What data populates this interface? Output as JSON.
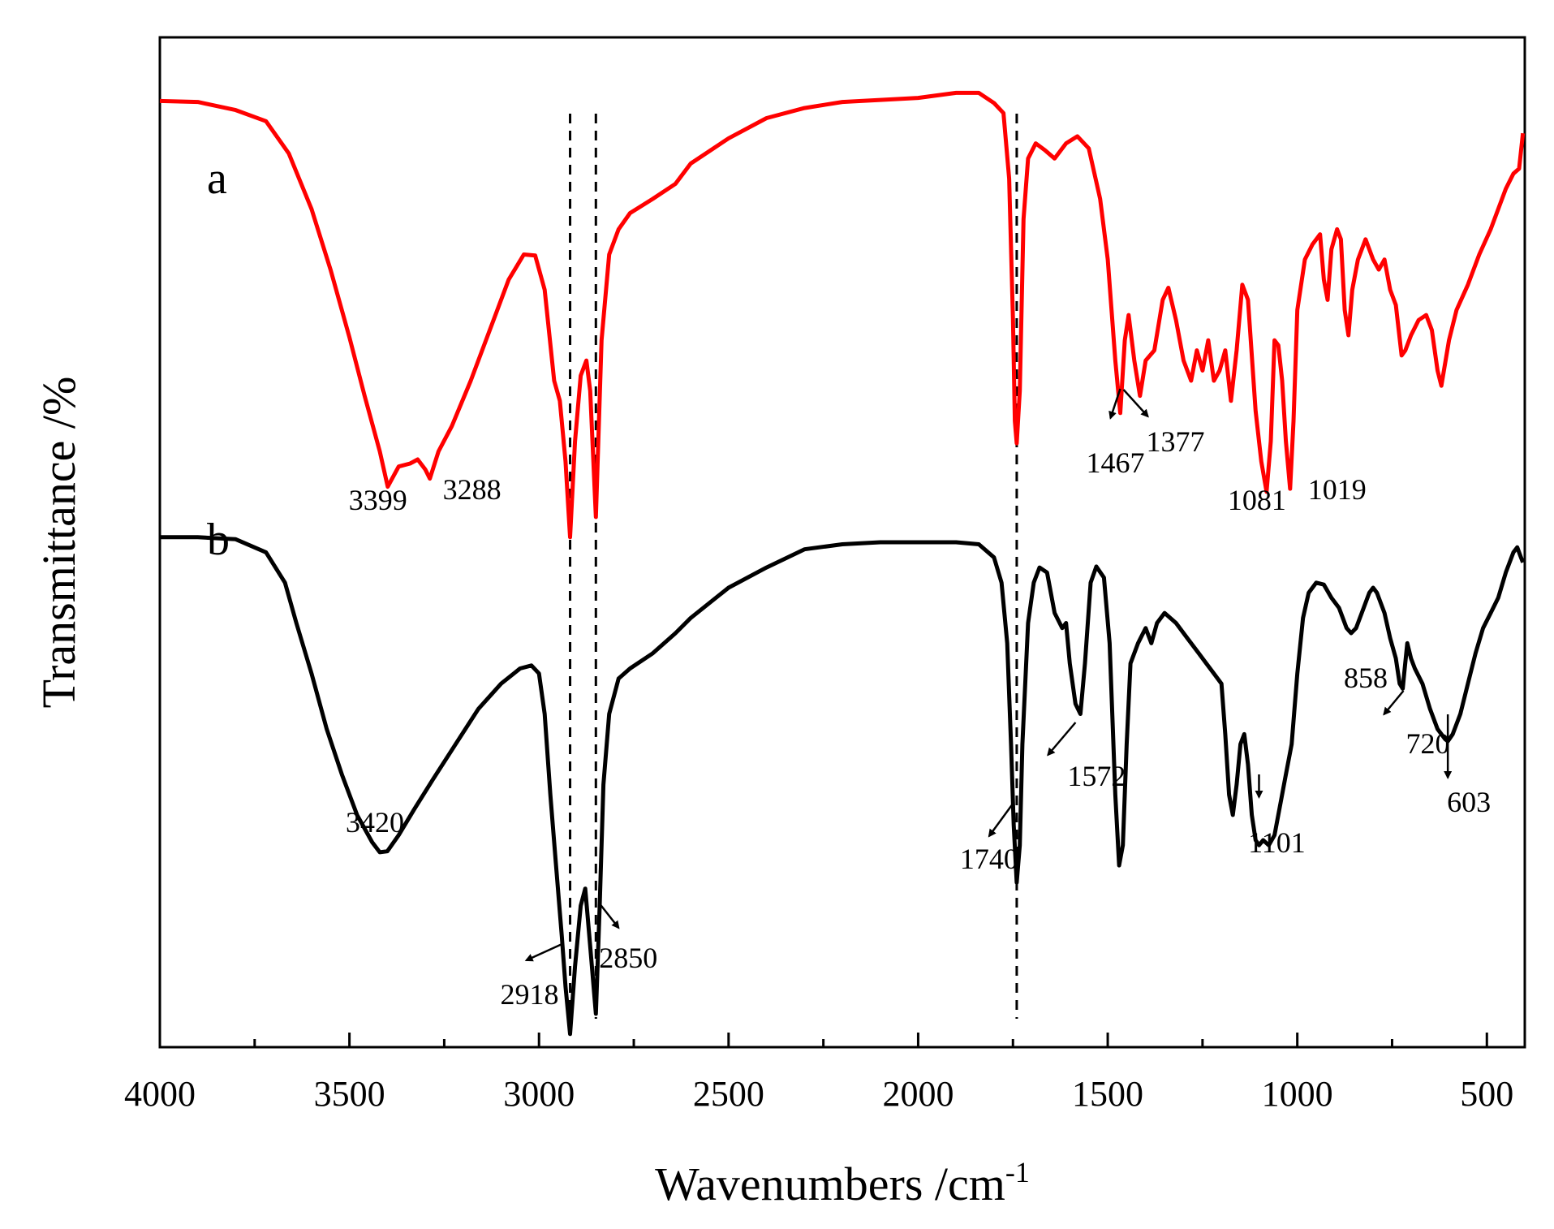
{
  "chart_data": {
    "type": "line",
    "title": "",
    "xlabel": "Wavenumbers /cm",
    "xlabel_sup": "-1",
    "ylabel": "Transmittance /%",
    "xlim": [
      4000,
      400
    ],
    "ylim": [
      0,
      100
    ],
    "x_reversed": true,
    "grid": false,
    "x_ticks": [
      4000,
      3500,
      3000,
      2500,
      2000,
      1500,
      1000,
      500
    ],
    "x_minor_ticks": [
      3750,
      3250,
      2750,
      2250,
      1750,
      1250,
      750
    ],
    "reference_lines": [
      2918,
      2850,
      1740
    ],
    "series": [
      {
        "name": "a",
        "color": "#ff0000",
        "points": [
          [
            4000,
            93.7
          ],
          [
            3900,
            93.6
          ],
          [
            3800,
            92.8
          ],
          [
            3720,
            91.7
          ],
          [
            3660,
            88.5
          ],
          [
            3600,
            83.0
          ],
          [
            3550,
            77.0
          ],
          [
            3500,
            70.3
          ],
          [
            3460,
            64.5
          ],
          [
            3420,
            59.0
          ],
          [
            3399,
            55.5
          ],
          [
            3370,
            57.5
          ],
          [
            3340,
            57.8
          ],
          [
            3320,
            58.2
          ],
          [
            3300,
            57.2
          ],
          [
            3288,
            56.3
          ],
          [
            3265,
            59.0
          ],
          [
            3230,
            61.5
          ],
          [
            3180,
            66.0
          ],
          [
            3130,
            71.0
          ],
          [
            3080,
            76.0
          ],
          [
            3040,
            78.5
          ],
          [
            3010,
            78.4
          ],
          [
            2985,
            75.0
          ],
          [
            2960,
            66.0
          ],
          [
            2945,
            64.0
          ],
          [
            2930,
            58.0
          ],
          [
            2918,
            50.5
          ],
          [
            2905,
            60.0
          ],
          [
            2890,
            66.5
          ],
          [
            2875,
            68.0
          ],
          [
            2865,
            65.0
          ],
          [
            2850,
            52.5
          ],
          [
            2835,
            70.0
          ],
          [
            2815,
            78.5
          ],
          [
            2790,
            81.0
          ],
          [
            2760,
            82.6
          ],
          [
            2700,
            84.0
          ],
          [
            2640,
            85.5
          ],
          [
            2600,
            87.5
          ],
          [
            2500,
            90.0
          ],
          [
            2400,
            92.0
          ],
          [
            2300,
            93.0
          ],
          [
            2200,
            93.6
          ],
          [
            2100,
            93.8
          ],
          [
            2000,
            94.0
          ],
          [
            1900,
            94.5
          ],
          [
            1840,
            94.5
          ],
          [
            1800,
            93.5
          ],
          [
            1775,
            92.5
          ],
          [
            1760,
            86.0
          ],
          [
            1750,
            72.0
          ],
          [
            1745,
            62.0
          ],
          [
            1740,
            59.8
          ],
          [
            1732,
            65.0
          ],
          [
            1722,
            82.0
          ],
          [
            1710,
            88.0
          ],
          [
            1690,
            89.5
          ],
          [
            1665,
            88.8
          ],
          [
            1640,
            88.0
          ],
          [
            1610,
            89.5
          ],
          [
            1580,
            90.2
          ],
          [
            1550,
            89.0
          ],
          [
            1520,
            84.0
          ],
          [
            1500,
            78.0
          ],
          [
            1480,
            68.0
          ],
          [
            1467,
            62.8
          ],
          [
            1455,
            70.0
          ],
          [
            1445,
            72.5
          ],
          [
            1430,
            68.0
          ],
          [
            1415,
            64.5
          ],
          [
            1400,
            68.0
          ],
          [
            1377,
            69.0
          ],
          [
            1355,
            74.0
          ],
          [
            1340,
            75.2
          ],
          [
            1320,
            72.0
          ],
          [
            1300,
            68.0
          ],
          [
            1280,
            66.0
          ],
          [
            1265,
            69.0
          ],
          [
            1250,
            67.0
          ],
          [
            1235,
            70.0
          ],
          [
            1220,
            66.0
          ],
          [
            1205,
            67.0
          ],
          [
            1190,
            69.0
          ],
          [
            1175,
            64.0
          ],
          [
            1160,
            69.0
          ],
          [
            1145,
            75.5
          ],
          [
            1130,
            74.0
          ],
          [
            1110,
            63.0
          ],
          [
            1095,
            58.0
          ],
          [
            1081,
            55.0
          ],
          [
            1070,
            60.0
          ],
          [
            1060,
            70.0
          ],
          [
            1050,
            69.5
          ],
          [
            1040,
            66.0
          ],
          [
            1030,
            60.0
          ],
          [
            1019,
            55.3
          ],
          [
            1010,
            62.0
          ],
          [
            1000,
            73.0
          ],
          [
            980,
            78.0
          ],
          [
            960,
            79.5
          ],
          [
            940,
            80.5
          ],
          [
            930,
            76.0
          ],
          [
            920,
            74.0
          ],
          [
            910,
            79.0
          ],
          [
            895,
            81.0
          ],
          [
            885,
            80.0
          ],
          [
            875,
            73.0
          ],
          [
            865,
            70.5
          ],
          [
            855,
            75.0
          ],
          [
            840,
            78.0
          ],
          [
            820,
            80.0
          ],
          [
            800,
            78.0
          ],
          [
            785,
            77.0
          ],
          [
            770,
            78.0
          ],
          [
            755,
            75.0
          ],
          [
            740,
            73.5
          ],
          [
            725,
            68.5
          ],
          [
            715,
            69.0
          ],
          [
            700,
            70.5
          ],
          [
            680,
            72.0
          ],
          [
            660,
            72.5
          ],
          [
            645,
            71.0
          ],
          [
            630,
            67.0
          ],
          [
            620,
            65.5
          ],
          [
            600,
            70.0
          ],
          [
            580,
            73.0
          ],
          [
            550,
            75.5
          ],
          [
            520,
            78.5
          ],
          [
            490,
            81.0
          ],
          [
            470,
            83.0
          ],
          [
            450,
            85.0
          ],
          [
            430,
            86.5
          ],
          [
            415,
            87.0
          ],
          [
            405,
            90.5
          ]
        ]
      },
      {
        "name": "b",
        "color": "#000000",
        "points": [
          [
            4000,
            50.5
          ],
          [
            3900,
            50.5
          ],
          [
            3800,
            50.3
          ],
          [
            3720,
            49.0
          ],
          [
            3670,
            46.0
          ],
          [
            3640,
            42.0
          ],
          [
            3600,
            37.0
          ],
          [
            3560,
            31.5
          ],
          [
            3520,
            27.0
          ],
          [
            3480,
            23.0
          ],
          [
            3440,
            20.3
          ],
          [
            3420,
            19.3
          ],
          [
            3400,
            19.4
          ],
          [
            3370,
            21.0
          ],
          [
            3330,
            23.5
          ],
          [
            3280,
            26.5
          ],
          [
            3220,
            30.0
          ],
          [
            3160,
            33.5
          ],
          [
            3100,
            36.0
          ],
          [
            3050,
            37.5
          ],
          [
            3020,
            37.8
          ],
          [
            3000,
            37.0
          ],
          [
            2985,
            33.0
          ],
          [
            2970,
            25.0
          ],
          [
            2955,
            18.0
          ],
          [
            2940,
            11.0
          ],
          [
            2930,
            6.0
          ],
          [
            2918,
            1.3
          ],
          [
            2905,
            8.0
          ],
          [
            2890,
            14.0
          ],
          [
            2878,
            15.7
          ],
          [
            2865,
            10.0
          ],
          [
            2850,
            3.3
          ],
          [
            2840,
            14.0
          ],
          [
            2830,
            26.0
          ],
          [
            2815,
            33.0
          ],
          [
            2790,
            36.5
          ],
          [
            2760,
            37.5
          ],
          [
            2700,
            39.0
          ],
          [
            2640,
            41.0
          ],
          [
            2600,
            42.5
          ],
          [
            2500,
            45.5
          ],
          [
            2400,
            47.5
          ],
          [
            2300,
            49.3
          ],
          [
            2200,
            49.8
          ],
          [
            2100,
            50.0
          ],
          [
            2000,
            50.0
          ],
          [
            1900,
            50.0
          ],
          [
            1840,
            49.8
          ],
          [
            1800,
            48.5
          ],
          [
            1780,
            46.0
          ],
          [
            1765,
            40.0
          ],
          [
            1755,
            30.0
          ],
          [
            1748,
            22.0
          ],
          [
            1740,
            16.3
          ],
          [
            1732,
            20.0
          ],
          [
            1725,
            30.0
          ],
          [
            1710,
            42.0
          ],
          [
            1695,
            46.0
          ],
          [
            1680,
            47.5
          ],
          [
            1660,
            47.0
          ],
          [
            1640,
            43.0
          ],
          [
            1620,
            41.5
          ],
          [
            1610,
            42.0
          ],
          [
            1600,
            38.0
          ],
          [
            1585,
            34.0
          ],
          [
            1572,
            33.0
          ],
          [
            1560,
            38.0
          ],
          [
            1545,
            46.0
          ],
          [
            1530,
            47.6
          ],
          [
            1510,
            46.5
          ],
          [
            1495,
            40.0
          ],
          [
            1480,
            25.0
          ],
          [
            1470,
            18.0
          ],
          [
            1460,
            20.0
          ],
          [
            1450,
            30.0
          ],
          [
            1440,
            38.0
          ],
          [
            1420,
            40.0
          ],
          [
            1400,
            41.5
          ],
          [
            1385,
            40.0
          ],
          [
            1370,
            42.0
          ],
          [
            1350,
            43.0
          ],
          [
            1320,
            42.0
          ],
          [
            1290,
            40.5
          ],
          [
            1260,
            39.0
          ],
          [
            1240,
            38.0
          ],
          [
            1220,
            37.0
          ],
          [
            1200,
            36.0
          ],
          [
            1190,
            31.0
          ],
          [
            1180,
            25.0
          ],
          [
            1170,
            23.0
          ],
          [
            1160,
            26.0
          ],
          [
            1150,
            30.0
          ],
          [
            1140,
            31.0
          ],
          [
            1130,
            28.0
          ],
          [
            1120,
            23.0
          ],
          [
            1110,
            20.5
          ],
          [
            1101,
            20.0
          ],
          [
            1090,
            20.5
          ],
          [
            1075,
            20.0
          ],
          [
            1060,
            21.0
          ],
          [
            1045,
            24.0
          ],
          [
            1030,
            27.0
          ],
          [
            1015,
            30.0
          ],
          [
            1000,
            37.0
          ],
          [
            985,
            42.5
          ],
          [
            970,
            45.0
          ],
          [
            950,
            46.0
          ],
          [
            930,
            45.8
          ],
          [
            910,
            44.5
          ],
          [
            890,
            43.5
          ],
          [
            870,
            41.5
          ],
          [
            858,
            41.0
          ],
          [
            845,
            41.5
          ],
          [
            830,
            43.0
          ],
          [
            810,
            45.0
          ],
          [
            800,
            45.5
          ],
          [
            790,
            45.0
          ],
          [
            770,
            43.0
          ],
          [
            755,
            40.5
          ],
          [
            740,
            38.5
          ],
          [
            730,
            36.0
          ],
          [
            722,
            35.5
          ],
          [
            718,
            37.0
          ],
          [
            710,
            40.0
          ],
          [
            700,
            38.5
          ],
          [
            690,
            37.5
          ],
          [
            670,
            36.0
          ],
          [
            650,
            33.5
          ],
          [
            630,
            31.5
          ],
          [
            610,
            30.5
          ],
          [
            603,
            30.3
          ],
          [
            590,
            31.0
          ],
          [
            570,
            33.0
          ],
          [
            550,
            36.0
          ],
          [
            530,
            39.0
          ],
          [
            510,
            41.5
          ],
          [
            490,
            43.0
          ],
          [
            470,
            44.5
          ],
          [
            450,
            47.0
          ],
          [
            430,
            49.0
          ],
          [
            420,
            49.5
          ],
          [
            410,
            48.5
          ],
          [
            405,
            48.0
          ]
        ]
      }
    ],
    "annotations": [
      {
        "text": "3399",
        "series": "a",
        "x": 3399
      },
      {
        "text": "3288",
        "series": "a",
        "x": 3288
      },
      {
        "text": "1467",
        "series": "a",
        "x": 1467,
        "arrow": true
      },
      {
        "text": "1377",
        "series": "a",
        "x": 1377,
        "arrow": true
      },
      {
        "text": "1081",
        "series": "a",
        "x": 1081
      },
      {
        "text": "1019",
        "series": "a",
        "x": 1019
      },
      {
        "text": "3420",
        "series": "b",
        "x": 3420
      },
      {
        "text": "2918",
        "series": "b",
        "x": 2918,
        "arrow": true
      },
      {
        "text": "2850",
        "series": "b",
        "x": 2850,
        "arrow": true
      },
      {
        "text": "1740",
        "series": "b",
        "x": 1740,
        "arrow": true
      },
      {
        "text": "1572",
        "series": "b",
        "x": 1572,
        "arrow": true
      },
      {
        "text": "1101",
        "series": "b",
        "x": 1101,
        "arrow": true
      },
      {
        "text": "858",
        "series": "b",
        "x": 858
      },
      {
        "text": "720",
        "series": "b",
        "x": 720,
        "arrow": true
      },
      {
        "text": "603",
        "series": "b",
        "x": 603,
        "arrow": true
      }
    ]
  }
}
